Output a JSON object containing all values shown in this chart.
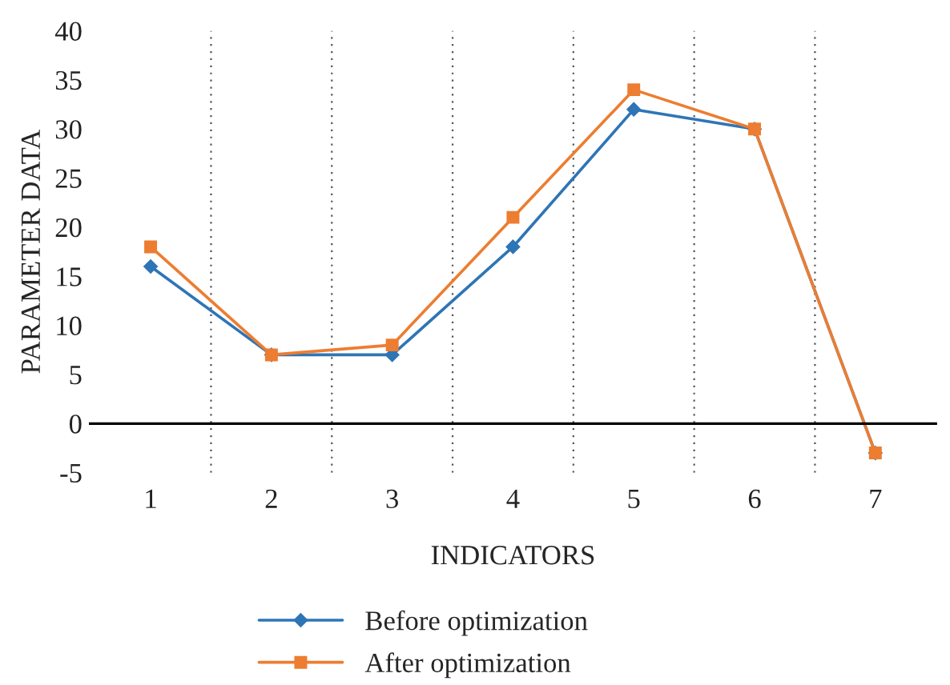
{
  "chart_data": {
    "type": "line",
    "xlabel": "INDICATORS",
    "ylabel": "PARAMETER DATA",
    "categories": [
      "1",
      "2",
      "3",
      "4",
      "5",
      "6",
      "7"
    ],
    "series": [
      {
        "name": "Before optimization",
        "color": "#2e75b6",
        "marker": "diamond",
        "values": [
          16,
          7,
          7,
          18,
          32,
          30,
          -3
        ]
      },
      {
        "name": "After optimization",
        "color": "#ed7d31",
        "marker": "square",
        "values": [
          18,
          7,
          8,
          21,
          34,
          30,
          -3
        ]
      }
    ],
    "ylim": [
      -5,
      40
    ],
    "yticks": [
      -5,
      0,
      5,
      10,
      15,
      20,
      25,
      30,
      35,
      40
    ],
    "grid": "x",
    "legend": "bottom"
  }
}
